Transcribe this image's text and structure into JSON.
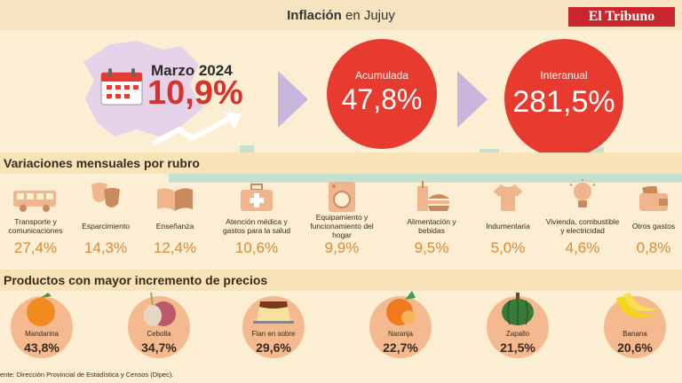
{
  "header": {
    "title_bold": "Inflación",
    "title_rest": " en Jujuy",
    "brand": "El Tribuno"
  },
  "monthly": {
    "period": "Marzo 2024",
    "value": "10,9%"
  },
  "accumulated": {
    "label": "Acumulada",
    "value": "47,8%"
  },
  "interannual": {
    "label": "Interanual",
    "value": "281,5%"
  },
  "rubros_title": "Variaciones mensuales por rubro",
  "rubros": [
    {
      "name": "Transporte y comunicaciones",
      "value": "27,4%",
      "icon": "bus-icon"
    },
    {
      "name": "Esparcimiento",
      "value": "14,3%",
      "icon": "theater-masks-icon"
    },
    {
      "name": "Enseñanza",
      "value": "12,4%",
      "icon": "book-icon"
    },
    {
      "name": "Atención médica y gastos para la salud",
      "value": "10,6%",
      "icon": "first-aid-kit-icon"
    },
    {
      "name": "Equipamiento y funcionamiento del hogar",
      "value": "9,9%",
      "icon": "washing-machine-icon"
    },
    {
      "name": "Alimentación y bebidas",
      "value": "9,5%",
      "icon": "fast-food-icon"
    },
    {
      "name": "Indumentaria",
      "value": "5,0%",
      "icon": "tshirt-icon"
    },
    {
      "name": "Vivienda, combustible y electricidad",
      "value": "4,6%",
      "icon": "lightbulb-icon"
    },
    {
      "name": "Otros gastos",
      "value": "0,8%",
      "icon": "wallet-icon"
    }
  ],
  "productos_title": "Productos con mayor incremento de precios",
  "productos": [
    {
      "name": "Mandarina",
      "value": "43,8%",
      "icon": "mandarin-icon"
    },
    {
      "name": "Cebolla",
      "value": "34,7%",
      "icon": "onion-icon"
    },
    {
      "name": "Flan en sobre",
      "value": "29,6%",
      "icon": "flan-icon"
    },
    {
      "name": "Naranja",
      "value": "22,7%",
      "icon": "orange-icon"
    },
    {
      "name": "Zapallo",
      "value": "21,5%",
      "icon": "pumpkin-icon"
    },
    {
      "name": "Banana",
      "value": "20,6%",
      "icon": "banana-icon"
    }
  ],
  "source": "ente: Dirección Provincial de Estadística y Censos (Dipec).",
  "colors": {
    "red": "#e63b2e",
    "arrow": "#c9b6dc",
    "skyline": "#c5e0cf",
    "orange_value": "#d98a3a"
  }
}
